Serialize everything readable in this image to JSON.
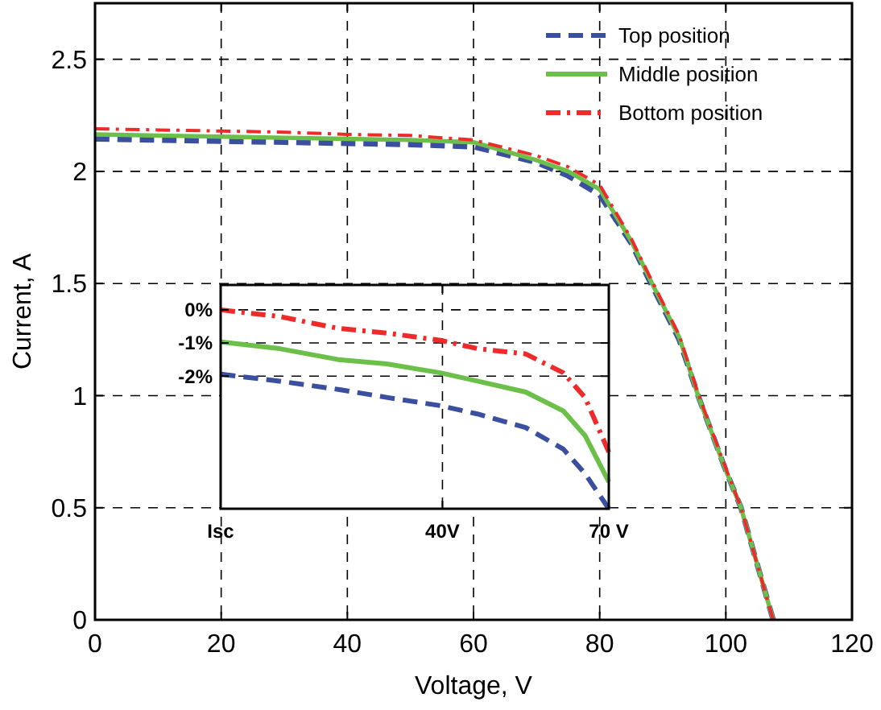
{
  "chart_data": [
    {
      "type": "line",
      "xlabel": "Voltage, V",
      "ylabel": "Current, A",
      "x": [
        0,
        10,
        20,
        30,
        40,
        50,
        60,
        70,
        75,
        80,
        85,
        88.3,
        92.6,
        95.6,
        99.8,
        102.4,
        107.5
      ],
      "xlim": [
        0,
        120
      ],
      "xticks": [
        0,
        20,
        40,
        60,
        80,
        100,
        120
      ],
      "ylim": [
        0,
        2.75
      ],
      "yticks": [
        0,
        0.5,
        1,
        1.5,
        2,
        2.5
      ],
      "grid": true,
      "legend": "top right",
      "series": [
        {
          "name": "Top position",
          "color": "#3a4fa0",
          "line_style": "dashed",
          "values": [
            2.145,
            2.14,
            2.135,
            2.13,
            2.125,
            2.12,
            2.11,
            2.04,
            1.98,
            1.895,
            1.68,
            1.49,
            1.25,
            1.0,
            0.68,
            0.5,
            0
          ]
        },
        {
          "name": "Middle position",
          "color": "#6cc04a",
          "line_style": "solid",
          "values": [
            2.165,
            2.16,
            2.155,
            2.15,
            2.145,
            2.14,
            2.13,
            2.05,
            2.0,
            1.92,
            1.69,
            1.5,
            1.26,
            1.0,
            0.68,
            0.5,
            0
          ]
        },
        {
          "name": "Bottom position",
          "color": "#ee2a2a",
          "line_style": "dashdot",
          "values": [
            2.19,
            2.185,
            2.18,
            2.175,
            2.165,
            2.16,
            2.14,
            2.07,
            2.02,
            1.94,
            1.7,
            1.51,
            1.27,
            1.01,
            0.69,
            0.5,
            0
          ]
        }
      ]
    },
    {
      "type": "line",
      "x": [
        0,
        10.6,
        21.2,
        29.9,
        39.6,
        46.3,
        55,
        61.8,
        65.7,
        70
      ],
      "xlim": [
        0,
        70
      ],
      "xticks": [
        {
          "value": 0,
          "label": "Isc"
        },
        {
          "value": 40,
          "label": "40V"
        },
        {
          "value": 70,
          "label": "70 V"
        }
      ],
      "ylim": [
        -6,
        0.75
      ],
      "yticks": [
        {
          "value": 0,
          "label": "0%"
        },
        {
          "value": -1,
          "label": "-1%"
        },
        {
          "value": -2,
          "label": "-2%"
        }
      ],
      "grid": true,
      "series": [
        {
          "color": "#3a4fa0",
          "line_style": "dashed",
          "values": [
            -1.94,
            -2.15,
            -2.4,
            -2.64,
            -2.89,
            -3.14,
            -3.55,
            -4.2,
            -4.94,
            -6
          ]
        },
        {
          "color": "#6cc04a",
          "line_style": "solid",
          "values": [
            -0.97,
            -1.17,
            -1.5,
            -1.63,
            -1.9,
            -2.15,
            -2.48,
            -3.05,
            -3.79,
            -5.19
          ]
        },
        {
          "color": "#ee2a2a",
          "line_style": "dashdot",
          "values": [
            0,
            -0.2,
            -0.56,
            -0.7,
            -0.92,
            -1.17,
            -1.33,
            -1.9,
            -2.64,
            -4.29
          ]
        }
      ]
    }
  ]
}
